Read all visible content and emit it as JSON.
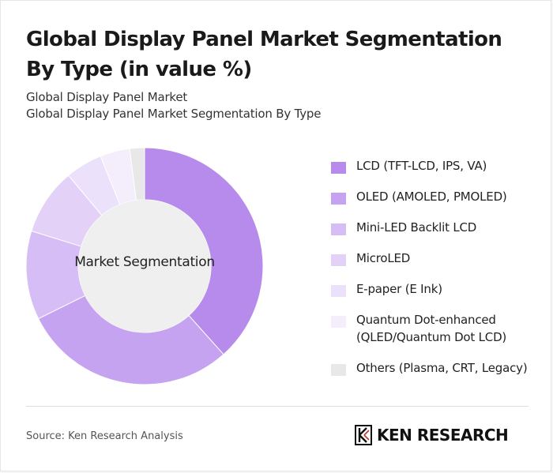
{
  "header": {
    "title": "Global Display Panel Market Segmentation By Type (in value %)",
    "subtitle1": "Global Display Panel Market",
    "subtitle2": "Global Display Panel Market Segmentation By Type"
  },
  "chart_data": {
    "type": "pie",
    "donut": true,
    "center_label": "Market Segmentation",
    "legend_position": "right",
    "slices": [
      {
        "label": "LCD (TFT-LCD, IPS, VA)",
        "value": 38,
        "color": "#b68bec"
      },
      {
        "label": "OLED (AMOLED, PMOLED)",
        "value": 29,
        "color": "#c5a3f1"
      },
      {
        "label": "Mini-LED Backlit LCD",
        "value": 12,
        "color": "#d6bdf6"
      },
      {
        "label": "MicroLED",
        "value": 9,
        "color": "#e3d1f8"
      },
      {
        "label": "E-paper (E Ink)",
        "value": 5,
        "color": "#ece1fa"
      },
      {
        "label": "Quantum Dot-enhanced (QLED/Quantum Dot LCD)",
        "value": 4,
        "color": "#f3edfc"
      },
      {
        "label": "Others (Plasma, CRT, Legacy)",
        "value": 2,
        "color": "#e8e8e8"
      }
    ],
    "center_color": "#efefef"
  },
  "footer": {
    "source": "Source: Ken Research Analysis",
    "brand_name": "KEN RESEARCH"
  }
}
